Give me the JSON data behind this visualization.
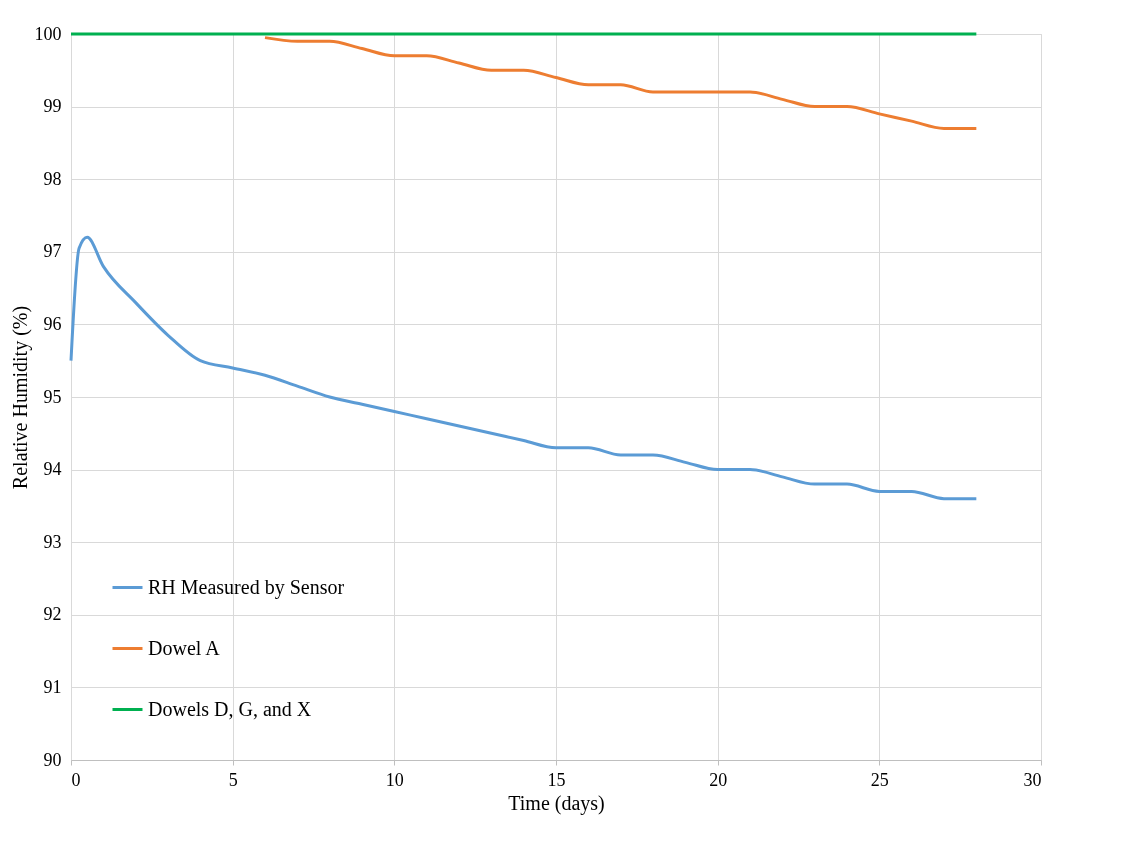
{
  "chart_data": {
    "type": "line",
    "xlabel": "Time (days)",
    "ylabel": "Relative Humidity (%)",
    "xlim": [
      0,
      30
    ],
    "xticks": [
      0,
      5,
      10,
      15,
      20,
      25,
      30
    ],
    "ylim": [
      90,
      100
    ],
    "yticks": [
      90,
      91,
      92,
      93,
      94,
      95,
      96,
      97,
      98,
      99,
      100
    ],
    "grid": true,
    "legend": "bottom left",
    "marker": "none",
    "line_style": "solid",
    "series": [
      {
        "name": "RH Measured by Sensor",
        "color": "#5b9bd5",
        "x": [
          0,
          0.25,
          0.5,
          1,
          2,
          3,
          4,
          5,
          6,
          7,
          8,
          9,
          10,
          11,
          12,
          13,
          14,
          15,
          16,
          17,
          18,
          19,
          20,
          21,
          22,
          23,
          24,
          25,
          26,
          27,
          28
        ],
        "values": [
          95.5,
          97.05,
          97.2,
          96.8,
          96.3,
          95.85,
          95.5,
          95.4,
          95.3,
          95.15,
          95.0,
          94.9,
          94.8,
          94.7,
          94.6,
          94.5,
          94.4,
          94.3,
          94.3,
          94.2,
          94.2,
          94.1,
          94.0,
          94.0,
          93.9,
          93.8,
          93.8,
          93.7,
          93.7,
          93.6,
          93.6
        ]
      },
      {
        "name": "Dowel A",
        "color": "#ed7d31",
        "x": [
          6,
          7,
          8,
          9,
          10,
          11,
          12,
          13,
          14,
          15,
          16,
          17,
          18,
          19,
          20,
          21,
          22,
          23,
          24,
          25,
          26,
          27,
          28
        ],
        "values": [
          99.95,
          99.9,
          99.9,
          99.8,
          99.7,
          99.7,
          99.6,
          99.5,
          99.5,
          99.4,
          99.3,
          99.3,
          99.2,
          99.2,
          99.2,
          99.2,
          99.1,
          99.0,
          99.0,
          98.9,
          98.8,
          98.7,
          98.7
        ]
      },
      {
        "name": "Dowels D, G, and X",
        "color": "#00b050",
        "x": [
          0,
          28
        ],
        "values": [
          100,
          100
        ]
      }
    ]
  }
}
